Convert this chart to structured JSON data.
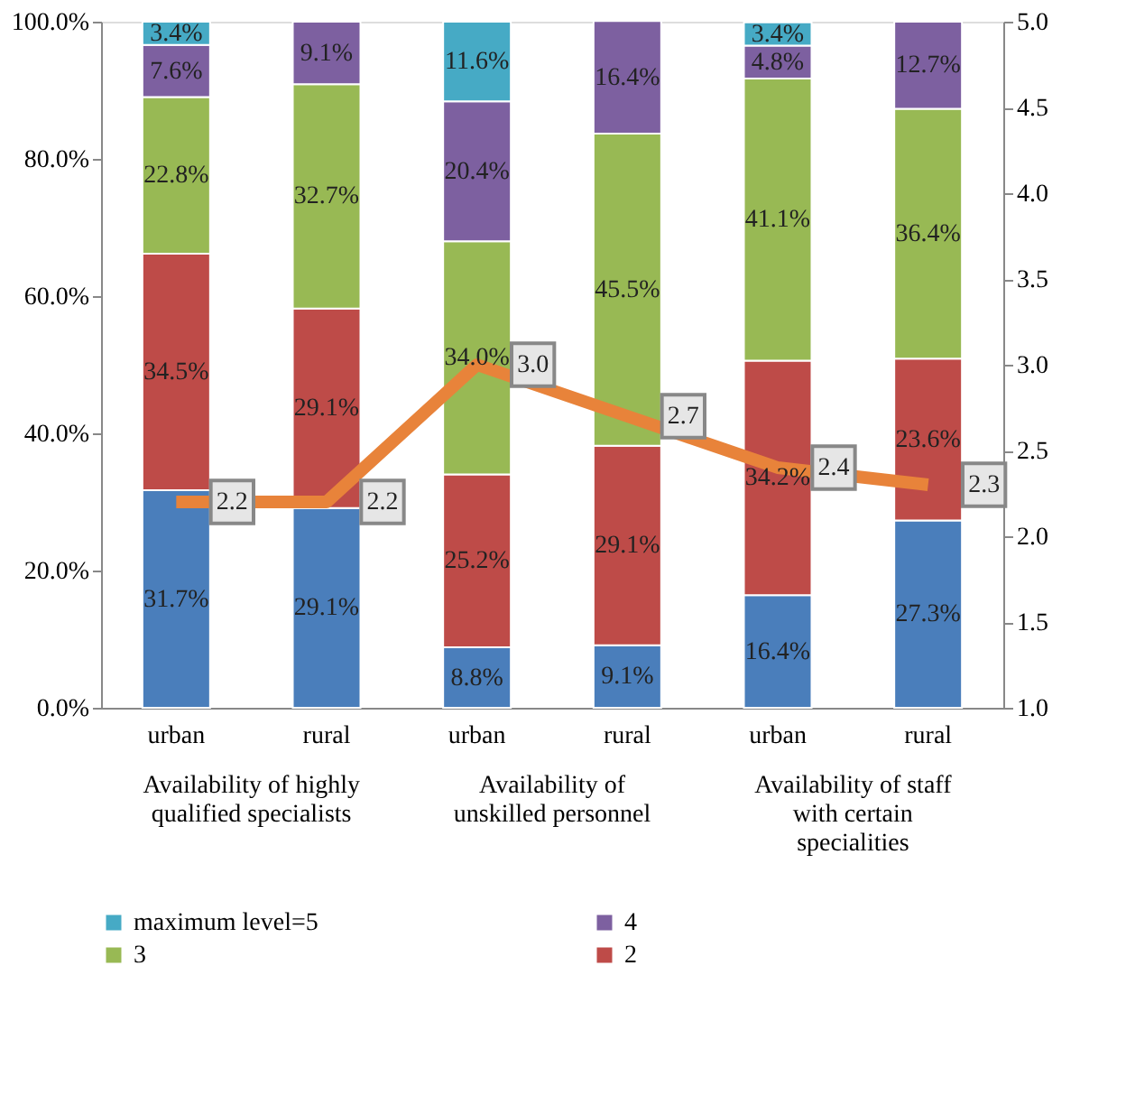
{
  "chart_data": {
    "type": "bar",
    "stacked": true,
    "categories": [
      "urban",
      "rural",
      "urban",
      "rural",
      "urban",
      "rural"
    ],
    "series": [
      {
        "color": "#4a7ebb",
        "values": [
          31.7,
          29.1,
          8.8,
          9.1,
          16.4,
          27.3
        ],
        "value_labels": [
          "31.7%",
          "29.1%",
          "8.8%",
          "9.1%",
          "16.4%",
          "27.3%"
        ]
      },
      {
        "name": "2",
        "color": "#be4b48",
        "values": [
          34.5,
          29.1,
          25.2,
          29.1,
          34.2,
          23.6
        ],
        "value_labels": [
          "34.5%",
          "29.1%",
          "25.2%",
          "29.1%",
          "34.2%",
          "23.6%"
        ]
      },
      {
        "name": "3",
        "color": "#98b954",
        "values": [
          22.8,
          32.7,
          34.0,
          45.5,
          41.1,
          36.4
        ],
        "value_labels": [
          "22.8%",
          "32.7%",
          "34.0%",
          "45.5%",
          "41.1%",
          "36.4%"
        ]
      },
      {
        "name": "4",
        "color": "#7d60a0",
        "values": [
          7.6,
          9.1,
          20.4,
          16.4,
          4.8,
          12.7
        ],
        "value_labels": [
          "7.6%",
          "9.1%",
          "20.4%",
          "16.4%",
          "4.8%",
          "12.7%"
        ]
      },
      {
        "name": "maximum level=5",
        "color": "#46aac5",
        "values": [
          3.4,
          null,
          11.6,
          null,
          3.4,
          null
        ],
        "value_labels": [
          "3.4%",
          null,
          "11.6%",
          null,
          "3.4%",
          null
        ]
      },
      {
        "type": "line",
        "axis": "y2",
        "color": "#e8833a",
        "values": [
          2.2,
          2.2,
          3.0,
          2.7,
          2.4,
          2.3
        ],
        "value_labels": [
          "2.2",
          "2.2",
          "3.0",
          "2.7",
          "2.4",
          "2.3"
        ]
      }
    ],
    "ylim": [
      0,
      100
    ],
    "yticks": [
      {
        "value": 0,
        "label": "0.0%"
      },
      {
        "value": 20,
        "label": "20.0%"
      },
      {
        "value": 40,
        "label": "40.0%"
      },
      {
        "value": 60,
        "label": "60.0%"
      },
      {
        "value": 80,
        "label": "80.0%"
      },
      {
        "value": 100,
        "label": "100.0%"
      }
    ],
    "y2lim": [
      1,
      5
    ],
    "y2ticks": [
      {
        "value": 1,
        "label": "1.0"
      },
      {
        "value": 1.5,
        "label": "1.5"
      },
      {
        "value": 2,
        "label": "2.0"
      },
      {
        "value": 2.5,
        "label": "2.5"
      },
      {
        "value": 3,
        "label": "3.0"
      },
      {
        "value": 3.5,
        "label": "3.5"
      },
      {
        "value": 4,
        "label": "4.0"
      },
      {
        "value": 4.5,
        "label": "4.5"
      },
      {
        "value": 5,
        "label": "5.0"
      }
    ],
    "annotations": [
      "Availability of highly qualified specialists",
      "Availability of unskilled personnel",
      "Availability of staff with certain specialities"
    ],
    "grid": false,
    "legend": "bottom"
  }
}
